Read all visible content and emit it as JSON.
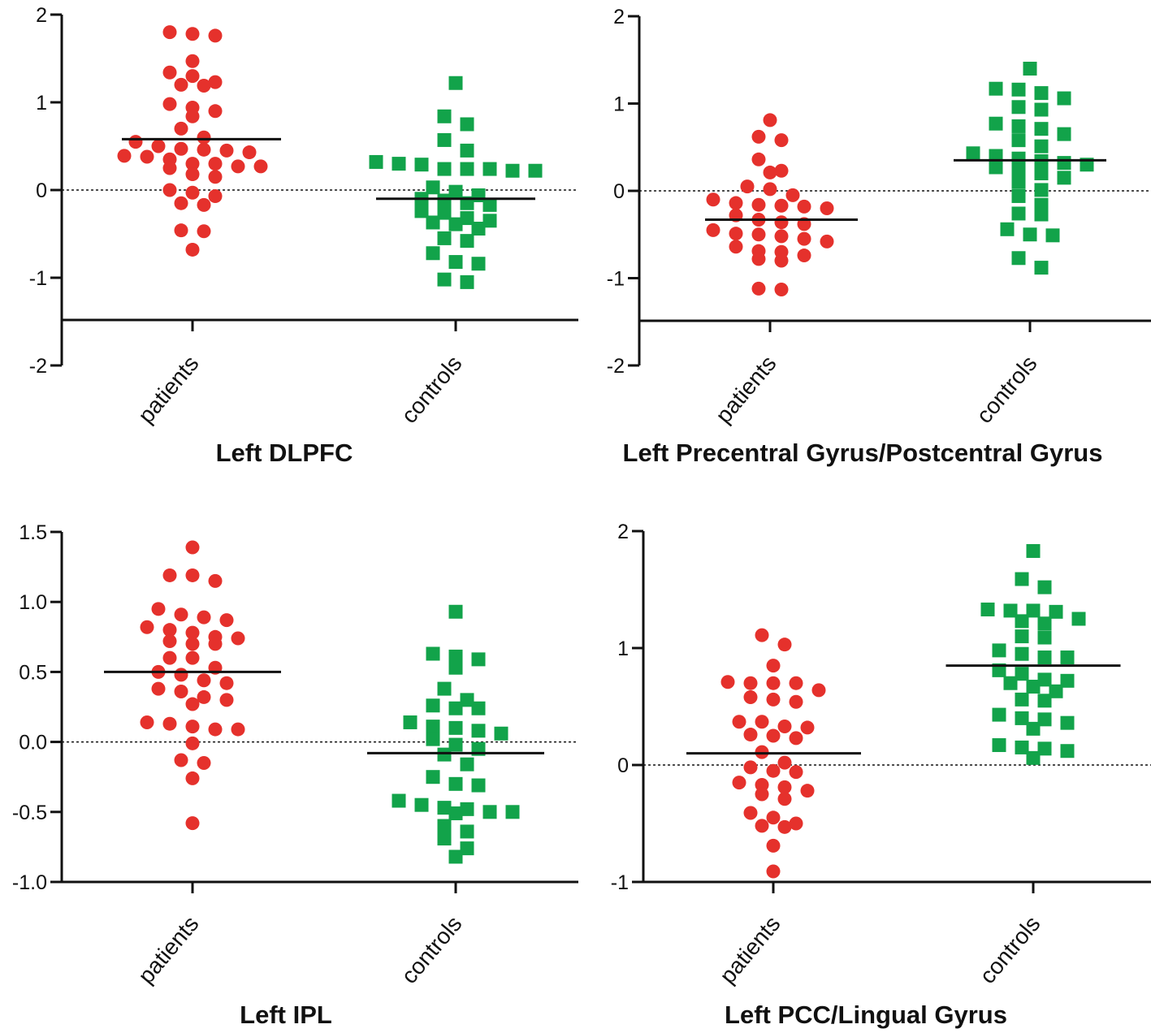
{
  "colors": {
    "patients": "#e5312c",
    "controls": "#12a34a",
    "axis": "#111111"
  },
  "chart_data": [
    {
      "type": "scatter",
      "title": "Left DLPFC",
      "xlabel": "",
      "ylabel": "",
      "ylim": [
        -2,
        2
      ],
      "yticks": [
        -2,
        -1,
        0,
        1,
        2
      ],
      "ytick_labels": [
        "-2",
        "-1",
        "0",
        "1",
        "2"
      ],
      "reference_line": 0,
      "categories": [
        "patients",
        "controls"
      ],
      "series": [
        {
          "name": "patients",
          "marker": "circle",
          "mean": 0.58,
          "values": [
            1.78,
            1.76,
            1.8,
            1.47,
            1.2,
            1.19,
            1.3,
            1.34,
            1.23,
            0.98,
            0.9,
            0.84,
            0.94,
            0.7,
            0.55,
            0.47,
            0.43,
            0.46,
            0.38,
            0.45,
            0.5,
            0.39,
            0.6,
            0.3,
            0.27,
            0.35,
            0.18,
            0.15,
            0.3,
            0.27,
            0.25,
            0.0,
            -0.03,
            -0.07,
            -0.15,
            -0.17,
            -0.47,
            -0.46,
            -0.68
          ]
        },
        {
          "name": "controls",
          "marker": "square",
          "mean": -0.1,
          "values": [
            1.22,
            0.84,
            0.75,
            0.57,
            0.45,
            0.32,
            0.24,
            0.24,
            0.22,
            0.29,
            0.24,
            0.22,
            0.03,
            -0.02,
            -0.12,
            -0.15,
            -0.1,
            -0.24,
            -0.26,
            -0.32,
            -0.37,
            -0.35,
            -0.39,
            -0.44,
            -0.55,
            -0.58,
            -0.72,
            -0.82,
            -0.84,
            -1.02,
            -1.05,
            -0.17,
            -0.06,
            0.3
          ]
        }
      ]
    },
    {
      "type": "scatter",
      "title": "Left Precentral Gyrus/Postcentral Gyrus",
      "xlabel": "",
      "ylabel": "",
      "ylim": [
        -2,
        2
      ],
      "yticks": [
        -2,
        -1,
        0,
        1,
        2
      ],
      "ytick_labels": [
        "-2",
        "-1",
        "0",
        "1",
        "2"
      ],
      "reference_line": 0,
      "categories": [
        "patients",
        "controls"
      ],
      "series": [
        {
          "name": "patients",
          "marker": "circle",
          "mean": -0.33,
          "values": [
            0.81,
            0.62,
            0.58,
            0.36,
            0.23,
            0.21,
            0.05,
            0.02,
            -0.05,
            -0.1,
            -0.14,
            -0.16,
            -0.17,
            -0.18,
            -0.2,
            -0.28,
            -0.33,
            -0.36,
            -0.38,
            -0.45,
            -0.49,
            -0.5,
            -0.52,
            -0.55,
            -0.58,
            -0.64,
            -0.69,
            -0.7,
            -0.74,
            -0.78,
            -0.8,
            -1.12,
            -1.13
          ]
        },
        {
          "name": "controls",
          "marker": "square",
          "mean": 0.35,
          "values": [
            1.4,
            1.17,
            1.16,
            1.12,
            1.06,
            0.96,
            0.93,
            0.77,
            0.74,
            0.71,
            0.65,
            0.58,
            0.51,
            0.43,
            0.4,
            0.37,
            0.34,
            0.32,
            0.3,
            0.27,
            0.25,
            0.2,
            0.15,
            0.1,
            0.01,
            -0.06,
            -0.16,
            -0.26,
            -0.27,
            -0.44,
            -0.5,
            -0.51,
            -0.77,
            -0.88
          ]
        }
      ]
    },
    {
      "type": "scatter",
      "title": "Left IPL",
      "xlabel": "",
      "ylabel": "",
      "ylim": [
        -1.0,
        1.5
      ],
      "yticks": [
        -1.0,
        -0.5,
        0.0,
        0.5,
        1.0,
        1.5
      ],
      "ytick_labels": [
        "-1.0",
        "-0.5",
        "0.0",
        "0.5",
        "1.0",
        "1.5"
      ],
      "reference_line": 0,
      "categories": [
        "patients",
        "controls"
      ],
      "series": [
        {
          "name": "patients",
          "marker": "circle",
          "mean": 0.5,
          "values": [
            1.39,
            1.19,
            1.15,
            1.19,
            0.95,
            0.91,
            0.87,
            0.89,
            0.82,
            0.8,
            0.78,
            0.74,
            0.75,
            0.72,
            0.7,
            0.7,
            0.6,
            0.6,
            0.53,
            0.5,
            0.48,
            0.44,
            0.42,
            0.38,
            0.36,
            0.32,
            0.3,
            0.27,
            0.14,
            0.13,
            0.11,
            0.09,
            0.09,
            -0.01,
            -0.13,
            -0.15,
            -0.26,
            -0.58
          ]
        },
        {
          "name": "controls",
          "marker": "square",
          "mean": -0.08,
          "values": [
            0.93,
            0.63,
            0.61,
            0.59,
            0.53,
            0.38,
            0.3,
            0.26,
            0.24,
            0.24,
            0.14,
            0.11,
            0.1,
            0.08,
            0.06,
            0.02,
            -0.02,
            -0.05,
            -0.09,
            -0.16,
            -0.25,
            -0.3,
            -0.31,
            -0.42,
            -0.45,
            -0.47,
            -0.48,
            -0.5,
            -0.5,
            -0.51,
            -0.6,
            -0.64,
            -0.69,
            -0.76,
            -0.82
          ]
        }
      ]
    },
    {
      "type": "scatter",
      "title": "Left PCC/Lingual Gyrus",
      "xlabel": "",
      "ylabel": "",
      "ylim": [
        -1,
        2
      ],
      "yticks": [
        -1,
        0,
        1,
        2
      ],
      "ytick_labels": [
        "-1",
        "0",
        "1",
        "2"
      ],
      "reference_line": 0,
      "categories": [
        "patients",
        "controls"
      ],
      "series": [
        {
          "name": "patients",
          "marker": "circle",
          "mean": 0.1,
          "values": [
            1.11,
            1.03,
            0.85,
            0.71,
            0.7,
            0.7,
            0.7,
            0.64,
            0.58,
            0.56,
            0.54,
            0.37,
            0.37,
            0.32,
            0.33,
            0.26,
            0.25,
            0.23,
            0.11,
            0.02,
            -0.02,
            -0.05,
            -0.06,
            -0.15,
            -0.17,
            -0.19,
            -0.22,
            -0.25,
            -0.29,
            -0.41,
            -0.45,
            -0.5,
            -0.52,
            -0.53,
            -0.69,
            -0.91
          ]
        },
        {
          "name": "controls",
          "marker": "square",
          "mean": 0.85,
          "values": [
            1.83,
            1.59,
            1.52,
            1.33,
            1.32,
            1.31,
            1.32,
            1.25,
            1.23,
            1.21,
            1.1,
            1.09,
            0.98,
            0.95,
            0.92,
            0.92,
            0.81,
            0.78,
            0.73,
            0.72,
            0.7,
            0.67,
            0.63,
            0.56,
            0.55,
            0.43,
            0.4,
            0.39,
            0.36,
            0.31,
            0.17,
            0.15,
            0.14,
            0.12,
            0.06
          ]
        }
      ]
    }
  ]
}
